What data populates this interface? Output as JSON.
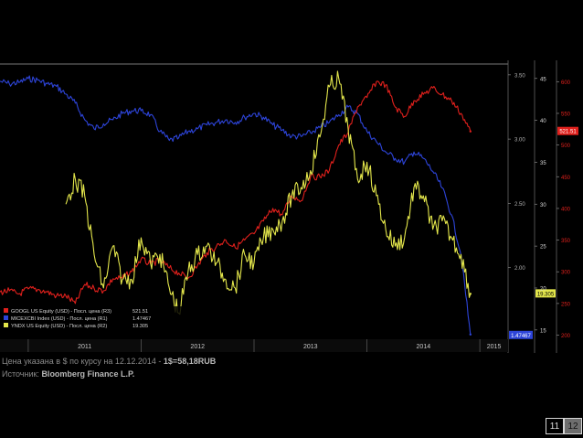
{
  "chart_data": {
    "type": "line",
    "x_axis": {
      "tick_labels": [
        "2011",
        "2012",
        "2013",
        "2014",
        "2015"
      ],
      "start": "2010-10",
      "end": "2015-04"
    },
    "axes": {
      "R1": {
        "side": "right-inner",
        "range": [
          1.45,
          3.57
        ],
        "tick_labels": [
          "3.50",
          "3.00",
          "2.50",
          "2.00"
        ],
        "tick_values": [
          3.5,
          3.0,
          2.5,
          2.0
        ],
        "color": "#b0b0b0"
      },
      "R2": {
        "side": "right-middle",
        "range": [
          14.0,
          46.5
        ],
        "tick_labels": [
          "45",
          "40",
          "35",
          "30",
          "25",
          "20",
          "15"
        ],
        "tick_values": [
          45,
          40,
          35,
          30,
          25,
          20,
          15
        ],
        "color": "#d8d8d8"
      },
      "R3": {
        "side": "right-outer",
        "range": [
          195,
          625
        ],
        "tick_labels": [
          "600",
          "550",
          "500",
          "450",
          "400",
          "350",
          "300",
          "250",
          "200"
        ],
        "tick_values": [
          600,
          550,
          500,
          450,
          400,
          350,
          300,
          250,
          200
        ],
        "color": "#e0201c"
      }
    },
    "series": [
      {
        "name": "MICEXCBI Index (USD) - Посл. цена (R1)",
        "axis": "R1",
        "color": "#2d44d9",
        "last_value": "1.47467",
        "x": [
          "2010-10",
          "2010-11",
          "2010-12",
          "2011-01",
          "2011-02",
          "2011-03",
          "2011-04",
          "2011-05",
          "2011-06",
          "2011-07",
          "2011-08",
          "2011-09",
          "2011-10",
          "2011-11",
          "2011-12",
          "2012-01",
          "2012-02",
          "2012-03",
          "2012-04",
          "2012-05",
          "2012-06",
          "2012-07",
          "2012-08",
          "2012-09",
          "2012-10",
          "2012-11",
          "2012-12",
          "2013-01",
          "2013-02",
          "2013-03",
          "2013-04",
          "2013-05",
          "2013-06",
          "2013-07",
          "2013-08",
          "2013-09",
          "2013-10",
          "2013-11",
          "2013-12",
          "2014-01",
          "2014-02",
          "2014-03",
          "2014-04",
          "2014-05",
          "2014-06",
          "2014-07",
          "2014-08",
          "2014-09",
          "2014-10",
          "2014-11",
          "2014-12"
        ],
        "values": [
          3.45,
          3.43,
          3.44,
          3.47,
          3.46,
          3.43,
          3.41,
          3.35,
          3.28,
          3.15,
          3.08,
          3.12,
          3.15,
          3.2,
          3.22,
          3.22,
          3.19,
          3.06,
          2.99,
          3.01,
          3.06,
          3.08,
          3.11,
          3.13,
          3.15,
          3.13,
          3.17,
          3.2,
          3.17,
          3.11,
          3.07,
          3.02,
          3.02,
          3.05,
          3.09,
          3.13,
          3.19,
          3.25,
          3.2,
          3.06,
          2.98,
          2.9,
          2.85,
          2.82,
          2.9,
          2.85,
          2.75,
          2.62,
          2.41,
          2.1,
          1.48
        ]
      },
      {
        "name": "GOOGL US Equity (USD) - Посл. цена (R3)",
        "axis": "R3",
        "color": "#e0201c",
        "last_value": "521.51",
        "x": [
          "2010-10",
          "2010-11",
          "2010-12",
          "2011-01",
          "2011-02",
          "2011-03",
          "2011-04",
          "2011-05",
          "2011-06",
          "2011-07",
          "2011-08",
          "2011-09",
          "2011-10",
          "2011-11",
          "2011-12",
          "2012-01",
          "2012-02",
          "2012-03",
          "2012-04",
          "2012-05",
          "2012-06",
          "2012-07",
          "2012-08",
          "2012-09",
          "2012-10",
          "2012-11",
          "2012-12",
          "2013-01",
          "2013-02",
          "2013-03",
          "2013-04",
          "2013-05",
          "2013-06",
          "2013-07",
          "2013-08",
          "2013-09",
          "2013-10",
          "2013-11",
          "2013-12",
          "2014-01",
          "2014-02",
          "2014-03",
          "2014-04",
          "2014-05",
          "2014-06",
          "2014-07",
          "2014-08",
          "2014-09",
          "2014-10",
          "2014-11",
          "2014-12"
        ],
        "values": [
          268,
          270,
          265,
          273,
          272,
          268,
          262,
          262,
          250,
          280,
          274,
          270,
          289,
          290,
          300,
          320,
          312,
          318,
          306,
          298,
          290,
          310,
          330,
          340,
          350,
          338,
          350,
          360,
          380,
          400,
          390,
          420,
          412,
          450,
          450,
          460,
          500,
          520,
          560,
          575,
          600,
          595,
          560,
          545,
          570,
          580,
          590,
          580,
          570,
          550,
          521.51
        ]
      },
      {
        "name": "YNDX US Equity (USD) - Посл. цена (R2)",
        "axis": "R2",
        "color": "#e3e64b",
        "last_value": "19.305",
        "x": [
          "2011-05",
          "2011-06",
          "2011-07",
          "2011-08",
          "2011-09",
          "2011-10",
          "2011-11",
          "2011-12",
          "2012-01",
          "2012-02",
          "2012-03",
          "2012-04",
          "2012-05",
          "2012-06",
          "2012-07",
          "2012-08",
          "2012-09",
          "2012-10",
          "2012-11",
          "2012-12",
          "2013-01",
          "2013-02",
          "2013-03",
          "2013-04",
          "2013-05",
          "2013-06",
          "2013-07",
          "2013-08",
          "2013-09",
          "2013-10",
          "2013-11",
          "2013-12",
          "2014-01",
          "2014-02",
          "2014-03",
          "2014-04",
          "2014-05",
          "2014-06",
          "2014-07",
          "2014-08",
          "2014-09",
          "2014-10",
          "2014-11",
          "2014-12"
        ],
        "values": [
          30,
          33,
          31,
          24,
          20,
          25,
          21,
          21,
          26,
          23,
          24,
          20,
          17,
          22,
          24,
          25,
          23,
          21,
          20,
          24,
          23,
          26,
          27,
          28,
          31,
          32,
          34,
          38,
          44,
          45,
          39,
          33,
          35,
          31,
          27,
          25,
          26,
          32,
          31,
          27,
          28,
          26,
          24,
          19.305
        ]
      }
    ],
    "legend": [
      {
        "label": "GOOGL US Equity (USD) - Посл. цена (R3)",
        "value": "521.51",
        "color": "#e0201c"
      },
      {
        "label": "MICEXCBI Index (USD) - Посл. цена (R1)",
        "value": "1.47467",
        "color": "#2d44d9"
      },
      {
        "label": "YNDX US Equity (USD) - Посл. цена (R2)",
        "value": "19.305",
        "color": "#e3e64b"
      }
    ],
    "legend_position": "bottom-left",
    "grid": false,
    "title": ""
  },
  "footnote": {
    "line1_prefix": "Цена указана в $ по курсу на 12.12.2014 - ",
    "line1_rate": "1$=58,18RUB",
    "line2_prefix": "Источник: ",
    "line2_source": "Bloomberg Finance L.P."
  },
  "pagination": {
    "current": "11",
    "next": "12"
  }
}
